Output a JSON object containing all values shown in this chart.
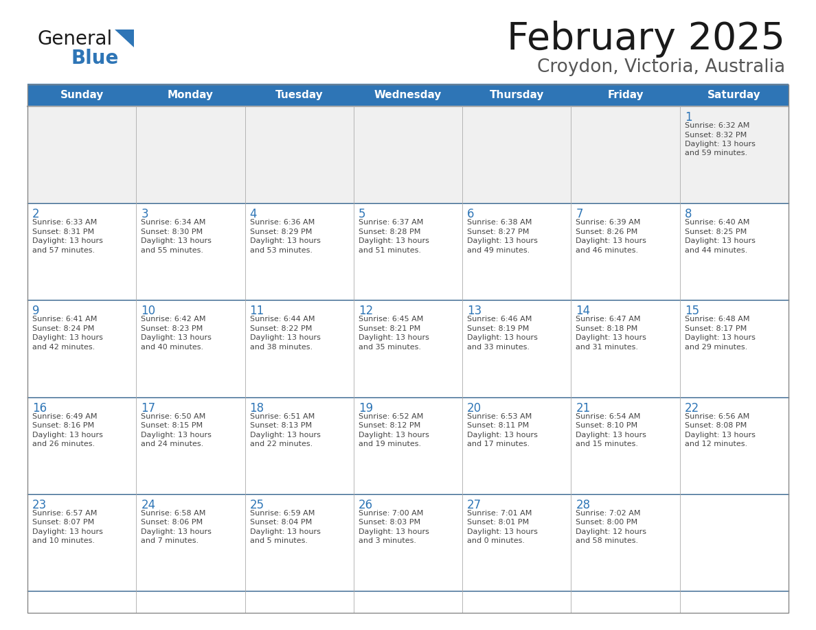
{
  "title": "February 2025",
  "subtitle": "Croydon, Victoria, Australia",
  "header_bg": "#2E75B6",
  "header_text_color": "#FFFFFF",
  "cell_bg_white": "#FFFFFF",
  "cell_bg_gray": "#F0F0F0",
  "text_color": "#444444",
  "day_number_color": "#2E75B6",
  "border_color": "#AAAAAA",
  "row_border_color": "#2E5F8A",
  "days_of_week": [
    "Sunday",
    "Monday",
    "Tuesday",
    "Wednesday",
    "Thursday",
    "Friday",
    "Saturday"
  ],
  "calendar_data": [
    [
      null,
      null,
      null,
      null,
      null,
      null,
      1
    ],
    [
      2,
      3,
      4,
      5,
      6,
      7,
      8
    ],
    [
      9,
      10,
      11,
      12,
      13,
      14,
      15
    ],
    [
      16,
      17,
      18,
      19,
      20,
      21,
      22
    ],
    [
      23,
      24,
      25,
      26,
      27,
      28,
      null
    ]
  ],
  "sunrise_data": {
    "1": "Sunrise: 6:32 AM\nSunset: 8:32 PM\nDaylight: 13 hours\nand 59 minutes.",
    "2": "Sunrise: 6:33 AM\nSunset: 8:31 PM\nDaylight: 13 hours\nand 57 minutes.",
    "3": "Sunrise: 6:34 AM\nSunset: 8:30 PM\nDaylight: 13 hours\nand 55 minutes.",
    "4": "Sunrise: 6:36 AM\nSunset: 8:29 PM\nDaylight: 13 hours\nand 53 minutes.",
    "5": "Sunrise: 6:37 AM\nSunset: 8:28 PM\nDaylight: 13 hours\nand 51 minutes.",
    "6": "Sunrise: 6:38 AM\nSunset: 8:27 PM\nDaylight: 13 hours\nand 49 minutes.",
    "7": "Sunrise: 6:39 AM\nSunset: 8:26 PM\nDaylight: 13 hours\nand 46 minutes.",
    "8": "Sunrise: 6:40 AM\nSunset: 8:25 PM\nDaylight: 13 hours\nand 44 minutes.",
    "9": "Sunrise: 6:41 AM\nSunset: 8:24 PM\nDaylight: 13 hours\nand 42 minutes.",
    "10": "Sunrise: 6:42 AM\nSunset: 8:23 PM\nDaylight: 13 hours\nand 40 minutes.",
    "11": "Sunrise: 6:44 AM\nSunset: 8:22 PM\nDaylight: 13 hours\nand 38 minutes.",
    "12": "Sunrise: 6:45 AM\nSunset: 8:21 PM\nDaylight: 13 hours\nand 35 minutes.",
    "13": "Sunrise: 6:46 AM\nSunset: 8:19 PM\nDaylight: 13 hours\nand 33 minutes.",
    "14": "Sunrise: 6:47 AM\nSunset: 8:18 PM\nDaylight: 13 hours\nand 31 minutes.",
    "15": "Sunrise: 6:48 AM\nSunset: 8:17 PM\nDaylight: 13 hours\nand 29 minutes.",
    "16": "Sunrise: 6:49 AM\nSunset: 8:16 PM\nDaylight: 13 hours\nand 26 minutes.",
    "17": "Sunrise: 6:50 AM\nSunset: 8:15 PM\nDaylight: 13 hours\nand 24 minutes.",
    "18": "Sunrise: 6:51 AM\nSunset: 8:13 PM\nDaylight: 13 hours\nand 22 minutes.",
    "19": "Sunrise: 6:52 AM\nSunset: 8:12 PM\nDaylight: 13 hours\nand 19 minutes.",
    "20": "Sunrise: 6:53 AM\nSunset: 8:11 PM\nDaylight: 13 hours\nand 17 minutes.",
    "21": "Sunrise: 6:54 AM\nSunset: 8:10 PM\nDaylight: 13 hours\nand 15 minutes.",
    "22": "Sunrise: 6:56 AM\nSunset: 8:08 PM\nDaylight: 13 hours\nand 12 minutes.",
    "23": "Sunrise: 6:57 AM\nSunset: 8:07 PM\nDaylight: 13 hours\nand 10 minutes.",
    "24": "Sunrise: 6:58 AM\nSunset: 8:06 PM\nDaylight: 13 hours\nand 7 minutes.",
    "25": "Sunrise: 6:59 AM\nSunset: 8:04 PM\nDaylight: 13 hours\nand 5 minutes.",
    "26": "Sunrise: 7:00 AM\nSunset: 8:03 PM\nDaylight: 13 hours\nand 3 minutes.",
    "27": "Sunrise: 7:01 AM\nSunset: 8:01 PM\nDaylight: 13 hours\nand 0 minutes.",
    "28": "Sunrise: 7:02 AM\nSunset: 8:00 PM\nDaylight: 12 hours\nand 58 minutes."
  },
  "logo_text_general": "General",
  "logo_text_blue": "Blue",
  "logo_triangle_color": "#2E75B6",
  "fig_width": 11.88,
  "fig_height": 9.18,
  "dpi": 100
}
